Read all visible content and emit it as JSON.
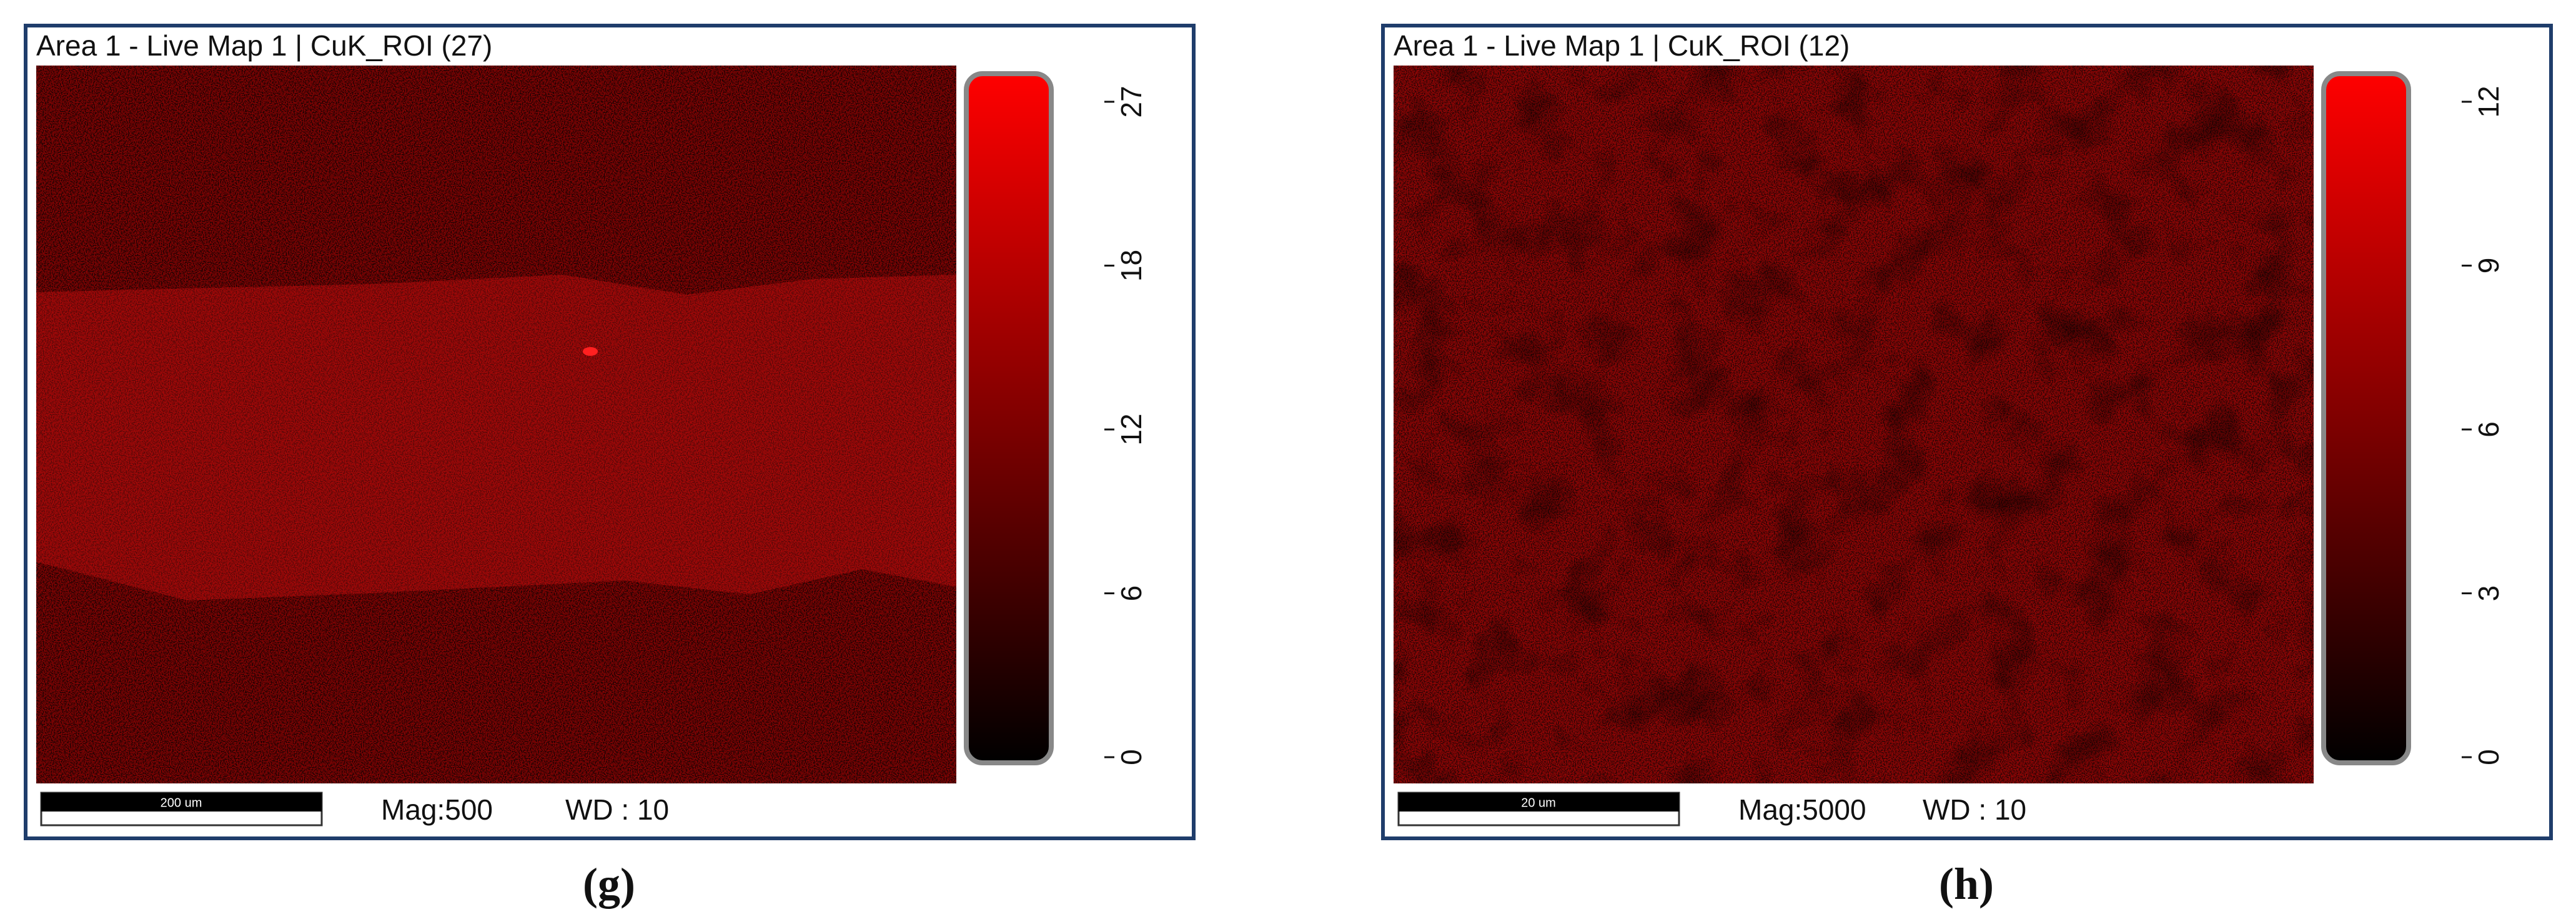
{
  "panels": [
    {
      "title": "Area 1 - Live Map 1 | CuK_ROI (27)",
      "colorbar_ticks": [
        0,
        6,
        12,
        18,
        27
      ],
      "scale_bar": "200 um",
      "mag": "Mag:500",
      "wd": "WD : 10",
      "caption": "(g)"
    },
    {
      "title": "Area 1 - Live Map 1 | CuK_ROI (12)",
      "colorbar_ticks": [
        0,
        3,
        6,
        9,
        12
      ],
      "scale_bar": "20 um",
      "mag": "Mag:5000",
      "wd": "WD : 10",
      "caption": "(h)"
    }
  ]
}
